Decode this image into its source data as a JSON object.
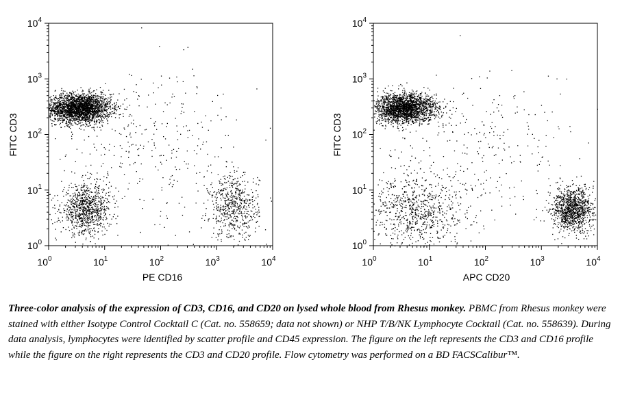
{
  "chart_data": [
    {
      "type": "scatter",
      "x_scale": "log",
      "y_scale": "log",
      "xlim": [
        1,
        10000
      ],
      "ylim": [
        1,
        10000
      ],
      "xlabel": "PE CD16",
      "ylabel": "FITC CD3",
      "x_tick_labels": [
        {
          "base": "10",
          "exp": "0"
        },
        {
          "base": "10",
          "exp": "1"
        },
        {
          "base": "10",
          "exp": "2"
        },
        {
          "base": "10",
          "exp": "3"
        },
        {
          "base": "10",
          "exp": "4"
        }
      ],
      "y_tick_labels": [
        {
          "base": "10",
          "exp": "0"
        },
        {
          "base": "10",
          "exp": "1"
        },
        {
          "base": "10",
          "exp": "2"
        },
        {
          "base": "10",
          "exp": "3"
        },
        {
          "base": "10",
          "exp": "4"
        }
      ],
      "populations": [
        {
          "x_center": 3.5,
          "y_center": 300,
          "x_spread_log": 0.28,
          "y_spread_log": 0.13,
          "count": 2600
        },
        {
          "x_center": 4.5,
          "y_center": 4.5,
          "x_spread_log": 0.22,
          "y_spread_log": 0.22,
          "count": 900
        },
        {
          "x_center": 2000,
          "y_center": 5,
          "x_spread_log": 0.22,
          "y_spread_log": 0.3,
          "count": 600
        },
        {
          "x_center": 60,
          "y_center": 60,
          "x_spread_log": 0.9,
          "y_spread_log": 0.7,
          "count": 350
        }
      ]
    },
    {
      "type": "scatter",
      "x_scale": "log",
      "y_scale": "log",
      "xlim": [
        1,
        10000
      ],
      "ylim": [
        1,
        10000
      ],
      "xlabel": "APC CD20",
      "ylabel": "FITC CD3",
      "x_tick_labels": [
        {
          "base": "10",
          "exp": "0"
        },
        {
          "base": "10",
          "exp": "1"
        },
        {
          "base": "10",
          "exp": "2"
        },
        {
          "base": "10",
          "exp": "3"
        },
        {
          "base": "10",
          "exp": "4"
        }
      ],
      "y_tick_labels": [
        {
          "base": "10",
          "exp": "0"
        },
        {
          "base": "10",
          "exp": "1"
        },
        {
          "base": "10",
          "exp": "2"
        },
        {
          "base": "10",
          "exp": "3"
        },
        {
          "base": "10",
          "exp": "4"
        }
      ],
      "populations": [
        {
          "x_center": 3.5,
          "y_center": 300,
          "x_spread_log": 0.28,
          "y_spread_log": 0.13,
          "count": 2200
        },
        {
          "x_center": 6,
          "y_center": 4,
          "x_spread_log": 0.45,
          "y_spread_log": 0.35,
          "count": 800
        },
        {
          "x_center": 3500,
          "y_center": 4.5,
          "x_spread_log": 0.18,
          "y_spread_log": 0.2,
          "count": 1100
        },
        {
          "x_center": 60,
          "y_center": 60,
          "x_spread_log": 0.9,
          "y_spread_log": 0.7,
          "count": 300
        }
      ]
    }
  ],
  "caption": {
    "lead": "Three-color analysis of the expression of CD3, CD16, and CD20 on lysed whole blood from Rhesus monkey.",
    "body": "PBMC from Rhesus monkey were stained with either Isotype Control Cocktail C (Cat. no. 558659; data not shown) or NHP T/B/NK Lymphocyte Cocktail (Cat. no. 558639).  During data analysis, lymphocytes were identified by scatter profile and CD45 expression.  The figure on the left represents the CD3 and CD16 profile while the figure on the right represents the CD3 and CD20 profile.  Flow cytometry was performed on a BD FACSCalibur™."
  }
}
